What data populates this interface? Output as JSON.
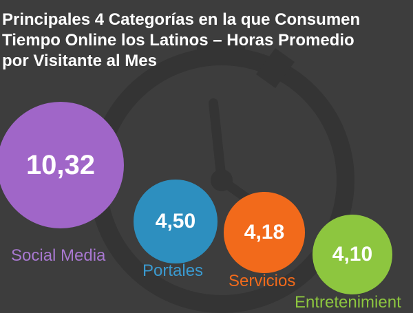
{
  "title_lines": [
    "Principales 4 Categorías en la que Consumen",
    "Tiempo Online los Latinos – Horas Promedio",
    "por Visitante al Mes"
  ],
  "chart_data": {
    "type": "bubble",
    "title": "Principales 4 Categorías en la que Consumen Tiempo Online los Latinos – Horas Promedio por Visitante al Mes",
    "categories": [
      "Social Media",
      "Portales",
      "Servicios",
      "Entretenimient"
    ],
    "values": [
      10.32,
      4.5,
      4.18,
      4.1
    ],
    "value_labels": [
      "10,32",
      "4,50",
      "4,18",
      "4,10"
    ],
    "colors": [
      "#a066c8",
      "#2d8fbf",
      "#f26a1b",
      "#8dc63f"
    ],
    "label_colors": [
      "#a878d0",
      "#3a9ad0",
      "#f26a1b",
      "#8dc63f"
    ]
  },
  "colors": {
    "background": "#3d3d3d",
    "title": "#ffffff",
    "watch": "#4a4a4a"
  },
  "icons": {
    "background": "stopwatch-icon"
  }
}
